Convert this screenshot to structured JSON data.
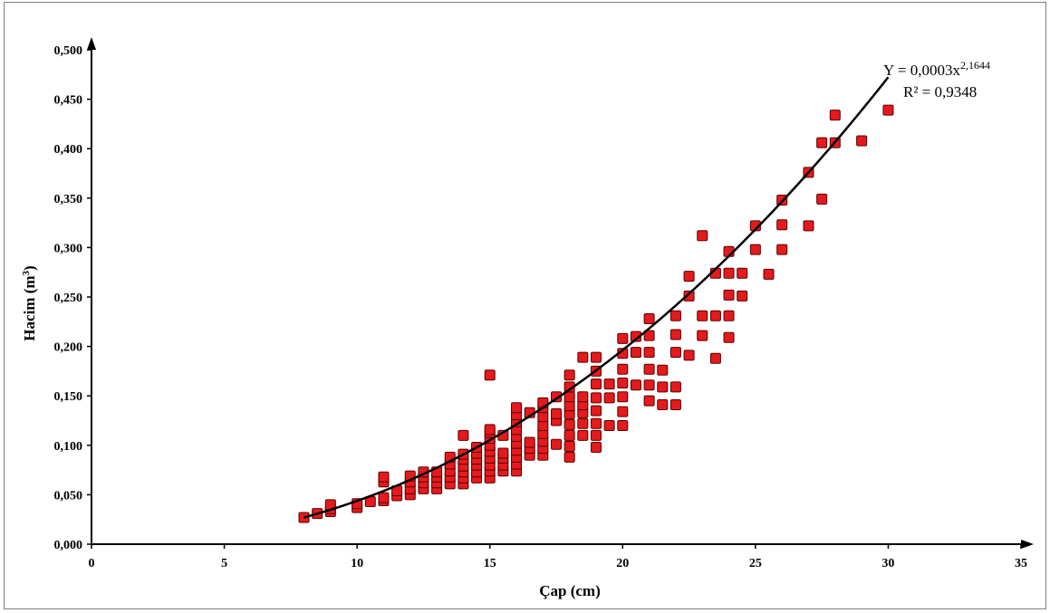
{
  "chart_data": {
    "type": "scatter",
    "title": "",
    "xlabel": "Çap (cm)",
    "ylabel_main": "Hacim (m",
    "ylabel_sup": "3",
    "ylabel_end": ")",
    "xlim": [
      0,
      35
    ],
    "ylim": [
      0,
      0.5
    ],
    "x_ticks": [
      "0",
      "5",
      "10",
      "15",
      "20",
      "25",
      "30",
      "35"
    ],
    "y_ticks": [
      "0,000",
      "0,050",
      "0,100",
      "0,150",
      "0,200",
      "0,250",
      "0,300",
      "0,350",
      "0,400",
      "0,450",
      "0,500"
    ],
    "grid": false,
    "legend": "none",
    "marker_color": "#e41a1c",
    "trendline": {
      "type": "power",
      "a": 0.0003,
      "b": 2.1644,
      "x_range": [
        8,
        30
      ],
      "equation_main": "Y = 0,0003x",
      "equation_exp": "2,1644",
      "r2_text": "R² = 0,9348"
    },
    "points": [
      [
        8,
        0.027
      ],
      [
        8.5,
        0.031
      ],
      [
        9,
        0.033
      ],
      [
        9,
        0.036
      ],
      [
        9,
        0.04
      ],
      [
        10,
        0.037
      ],
      [
        10,
        0.041
      ],
      [
        10.5,
        0.043
      ],
      [
        11,
        0.044
      ],
      [
        11,
        0.047
      ],
      [
        11,
        0.063
      ],
      [
        11,
        0.068
      ],
      [
        11.5,
        0.049
      ],
      [
        11.5,
        0.054
      ],
      [
        12,
        0.05
      ],
      [
        12,
        0.056
      ],
      [
        12,
        0.063
      ],
      [
        12,
        0.069
      ],
      [
        12.5,
        0.056
      ],
      [
        12.5,
        0.062
      ],
      [
        12.5,
        0.068
      ],
      [
        12.5,
        0.073
      ],
      [
        13,
        0.056
      ],
      [
        13,
        0.062
      ],
      [
        13,
        0.068
      ],
      [
        13,
        0.073
      ],
      [
        13.5,
        0.061
      ],
      [
        13.5,
        0.068
      ],
      [
        13.5,
        0.074
      ],
      [
        13.5,
        0.081
      ],
      [
        13.5,
        0.088
      ],
      [
        14,
        0.061
      ],
      [
        14,
        0.067
      ],
      [
        14,
        0.073
      ],
      [
        14,
        0.079
      ],
      [
        14,
        0.086
      ],
      [
        14,
        0.091
      ],
      [
        14,
        0.11
      ],
      [
        14.5,
        0.067
      ],
      [
        14.5,
        0.073
      ],
      [
        14.5,
        0.08
      ],
      [
        14.5,
        0.086
      ],
      [
        14.5,
        0.092
      ],
      [
        14.5,
        0.098
      ],
      [
        15,
        0.067
      ],
      [
        15,
        0.074
      ],
      [
        15,
        0.08
      ],
      [
        15,
        0.087
      ],
      [
        15,
        0.094
      ],
      [
        15,
        0.1
      ],
      [
        15,
        0.107
      ],
      [
        15,
        0.113
      ],
      [
        15,
        0.116
      ],
      [
        15,
        0.171
      ],
      [
        15.5,
        0.074
      ],
      [
        15.5,
        0.08
      ],
      [
        15.5,
        0.087
      ],
      [
        15.5,
        0.092
      ],
      [
        15.5,
        0.11
      ],
      [
        16,
        0.074
      ],
      [
        16,
        0.081
      ],
      [
        16,
        0.088
      ],
      [
        16,
        0.095
      ],
      [
        16,
        0.102
      ],
      [
        16,
        0.109
      ],
      [
        16,
        0.116
      ],
      [
        16,
        0.124
      ],
      [
        16,
        0.131
      ],
      [
        16,
        0.138
      ],
      [
        16.5,
        0.09
      ],
      [
        16.5,
        0.097
      ],
      [
        16.5,
        0.103
      ],
      [
        16.5,
        0.133
      ],
      [
        17,
        0.09
      ],
      [
        17,
        0.097
      ],
      [
        17,
        0.104
      ],
      [
        17,
        0.112
      ],
      [
        17,
        0.12
      ],
      [
        17,
        0.129
      ],
      [
        17,
        0.138
      ],
      [
        17,
        0.143
      ],
      [
        17.5,
        0.101
      ],
      [
        17.5,
        0.125
      ],
      [
        17.5,
        0.132
      ],
      [
        17.5,
        0.149
      ],
      [
        18,
        0.088
      ],
      [
        18,
        0.099
      ],
      [
        18,
        0.11
      ],
      [
        18,
        0.121
      ],
      [
        18,
        0.132
      ],
      [
        18,
        0.14
      ],
      [
        18,
        0.149
      ],
      [
        18,
        0.159
      ],
      [
        18,
        0.171
      ],
      [
        18.5,
        0.11
      ],
      [
        18.5,
        0.122
      ],
      [
        18.5,
        0.133
      ],
      [
        18.5,
        0.141
      ],
      [
        18.5,
        0.149
      ],
      [
        18.5,
        0.189
      ],
      [
        19,
        0.098
      ],
      [
        19,
        0.11
      ],
      [
        19,
        0.122
      ],
      [
        19,
        0.135
      ],
      [
        19,
        0.148
      ],
      [
        19,
        0.162
      ],
      [
        19,
        0.175
      ],
      [
        19,
        0.189
      ],
      [
        19.5,
        0.12
      ],
      [
        19.5,
        0.148
      ],
      [
        19.5,
        0.162
      ],
      [
        20,
        0.12
      ],
      [
        20,
        0.134
      ],
      [
        20,
        0.149
      ],
      [
        20,
        0.163
      ],
      [
        20,
        0.177
      ],
      [
        20,
        0.193
      ],
      [
        20,
        0.208
      ],
      [
        20.5,
        0.161
      ],
      [
        20.5,
        0.194
      ],
      [
        20.5,
        0.21
      ],
      [
        21,
        0.145
      ],
      [
        21,
        0.161
      ],
      [
        21,
        0.177
      ],
      [
        21,
        0.194
      ],
      [
        21,
        0.211
      ],
      [
        21,
        0.228
      ],
      [
        21.5,
        0.141
      ],
      [
        21.5,
        0.159
      ],
      [
        21.5,
        0.176
      ],
      [
        22,
        0.141
      ],
      [
        22,
        0.159
      ],
      [
        22,
        0.194
      ],
      [
        22,
        0.212
      ],
      [
        22,
        0.231
      ],
      [
        22.5,
        0.191
      ],
      [
        22.5,
        0.251
      ],
      [
        22.5,
        0.271
      ],
      [
        23,
        0.211
      ],
      [
        23,
        0.231
      ],
      [
        23,
        0.312
      ],
      [
        23.5,
        0.188
      ],
      [
        23.5,
        0.231
      ],
      [
        23.5,
        0.274
      ],
      [
        24,
        0.209
      ],
      [
        24,
        0.231
      ],
      [
        24,
        0.252
      ],
      [
        24,
        0.274
      ],
      [
        24,
        0.296
      ],
      [
        24.5,
        0.251
      ],
      [
        24.5,
        0.274
      ],
      [
        25,
        0.298
      ],
      [
        25,
        0.322
      ],
      [
        25.5,
        0.273
      ],
      [
        26,
        0.298
      ],
      [
        26,
        0.323
      ],
      [
        26,
        0.348
      ],
      [
        27,
        0.322
      ],
      [
        27,
        0.376
      ],
      [
        27.5,
        0.349
      ],
      [
        27.5,
        0.406
      ],
      [
        28,
        0.406
      ],
      [
        28,
        0.434
      ],
      [
        29,
        0.408
      ],
      [
        30,
        0.439
      ]
    ]
  }
}
